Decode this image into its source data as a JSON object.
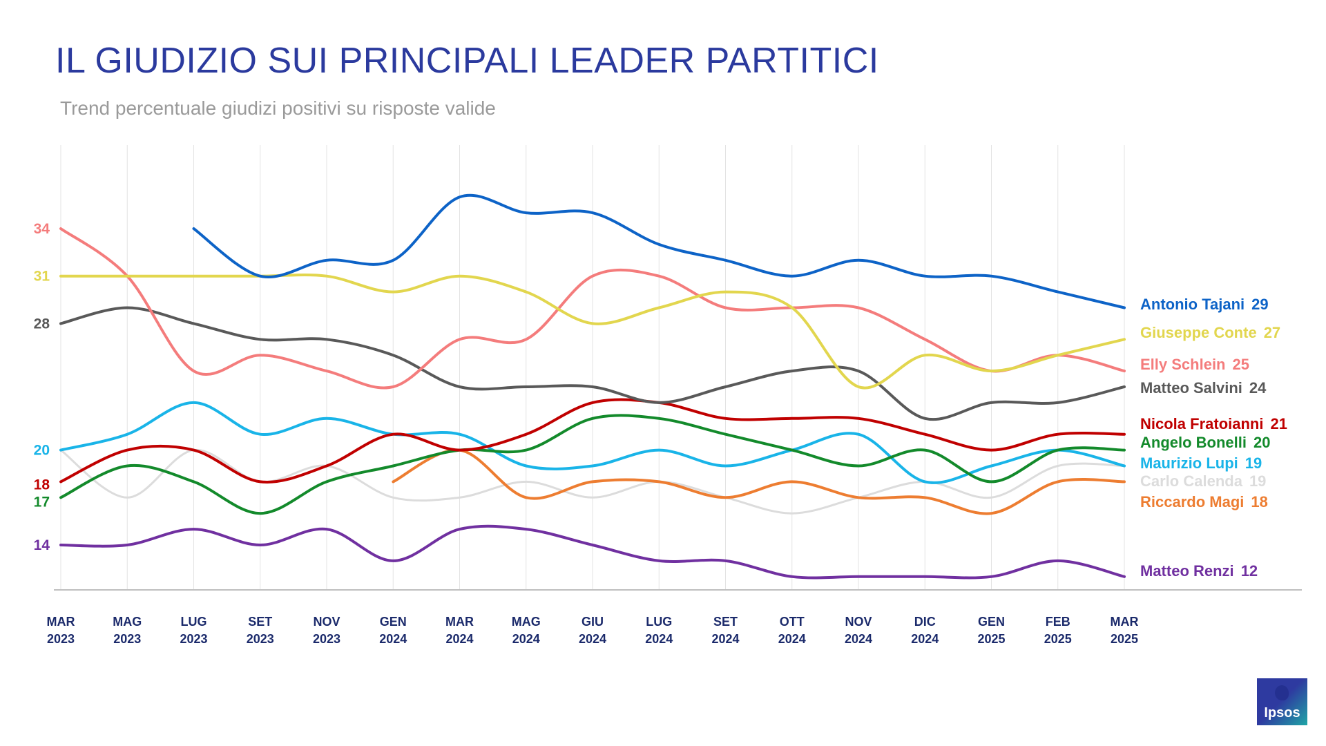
{
  "header": {
    "title": "IL GIUDIZIO SUI PRINCIPALI LEADER PARTITICI",
    "subtitle": "Trend percentuale giudizi positivi su risposte valide"
  },
  "logo": {
    "text": "Ipsos",
    "icon": "ipsos-logo-icon"
  },
  "chart_data": {
    "type": "line",
    "title": "IL GIUDIZIO SUI PRINCIPALI LEADER PARTITICI",
    "subtitle": "Trend percentuale giudizi positivi su risposte valide",
    "xlabel": "",
    "ylabel": "",
    "ylim": [
      10,
      37
    ],
    "grid": "vertical",
    "categories": [
      [
        "MAR",
        "2023"
      ],
      [
        "MAG",
        "2023"
      ],
      [
        "LUG",
        "2023"
      ],
      [
        "SET",
        "2023"
      ],
      [
        "NOV",
        "2023"
      ],
      [
        "GEN",
        "2024"
      ],
      [
        "MAR",
        "2024"
      ],
      [
        "MAG",
        "2024"
      ],
      [
        "GIU",
        "2024"
      ],
      [
        "LUG",
        "2024"
      ],
      [
        "SET",
        "2024"
      ],
      [
        "OTT",
        "2024"
      ],
      [
        "NOV",
        "2024"
      ],
      [
        "DIC",
        "2024"
      ],
      [
        "GEN",
        "2025"
      ],
      [
        "FEB",
        "2025"
      ],
      [
        "MAR",
        "2025"
      ]
    ],
    "start_labels": [
      {
        "text": "34",
        "value": 34,
        "color": "#f47c7c"
      },
      {
        "text": "31",
        "value": 31,
        "color": "#e2d64e"
      },
      {
        "text": "28",
        "value": 28,
        "color": "#595959"
      },
      {
        "text": "20",
        "value": 20,
        "color": "#19b4e8"
      },
      {
        "text": "18",
        "value": 18,
        "color": "#c00000"
      },
      {
        "text": "17",
        "value": 17,
        "color": "#138a2b"
      },
      {
        "text": "14",
        "value": 14,
        "color": "#7030a0"
      }
    ],
    "series": [
      {
        "name": "Carlo Calenda",
        "end_label": "19",
        "color": "#dcdcdc",
        "width": 3,
        "values": [
          20,
          17,
          20,
          18,
          19,
          17,
          17,
          18,
          17,
          18,
          17,
          16,
          17,
          18,
          17,
          19,
          19
        ]
      },
      {
        "name": "Riccardo Magi",
        "end_label": "18",
        "color": "#ed7d31",
        "width": 4,
        "values": [
          null,
          null,
          null,
          null,
          null,
          18,
          20,
          17,
          18,
          18,
          17,
          18,
          17,
          17,
          16,
          18,
          18
        ]
      },
      {
        "name": "Matteo Renzi",
        "end_label": "12",
        "color": "#7030a0",
        "width": 4,
        "values": [
          14,
          14,
          15,
          14,
          15,
          13,
          15,
          15,
          14,
          13,
          13,
          12,
          12,
          12,
          12,
          13,
          12
        ]
      },
      {
        "name": "Maurizio Lupi",
        "end_label": "19",
        "color": "#19b4e8",
        "width": 4,
        "values": [
          20,
          21,
          23,
          21,
          22,
          21,
          21,
          19,
          19,
          20,
          19,
          20,
          21,
          18,
          19,
          20,
          19
        ]
      },
      {
        "name": "Angelo Bonelli",
        "end_label": "20",
        "color": "#138a2b",
        "width": 4,
        "values": [
          17,
          19,
          18,
          16,
          18,
          19,
          20,
          20,
          22,
          22,
          21,
          20,
          19,
          20,
          18,
          20,
          20
        ]
      },
      {
        "name": "Nicola Fratoianni",
        "end_label": "21",
        "color": "#c00000",
        "width": 4,
        "values": [
          18,
          20,
          20,
          18,
          19,
          21,
          20,
          21,
          23,
          23,
          22,
          22,
          22,
          21,
          20,
          21,
          21
        ]
      },
      {
        "name": "Matteo Salvini",
        "end_label": "24",
        "color": "#595959",
        "width": 4,
        "values": [
          28,
          29,
          28,
          27,
          27,
          26,
          24,
          24,
          24,
          23,
          24,
          25,
          25,
          22,
          23,
          23,
          24
        ]
      },
      {
        "name": "Elly Schlein",
        "end_label": "25",
        "color": "#f47c7c",
        "width": 4,
        "values": [
          34,
          31,
          25,
          26,
          25,
          24,
          27,
          27,
          31,
          31,
          29,
          29,
          29,
          27,
          25,
          26,
          25
        ]
      },
      {
        "name": "Giuseppe Conte",
        "end_label": "27",
        "color": "#e2d64e",
        "width": 4,
        "values": [
          31,
          31,
          31,
          31,
          31,
          30,
          31,
          30,
          28,
          29,
          30,
          29,
          24,
          26,
          25,
          26,
          27
        ]
      },
      {
        "name": "Antonio Tajani",
        "end_label": "29",
        "color": "#0d63c7",
        "width": 4,
        "values": [
          null,
          null,
          34,
          31,
          32,
          32,
          36,
          35,
          35,
          33,
          32,
          31,
          32,
          31,
          31,
          30,
          29
        ]
      }
    ]
  }
}
